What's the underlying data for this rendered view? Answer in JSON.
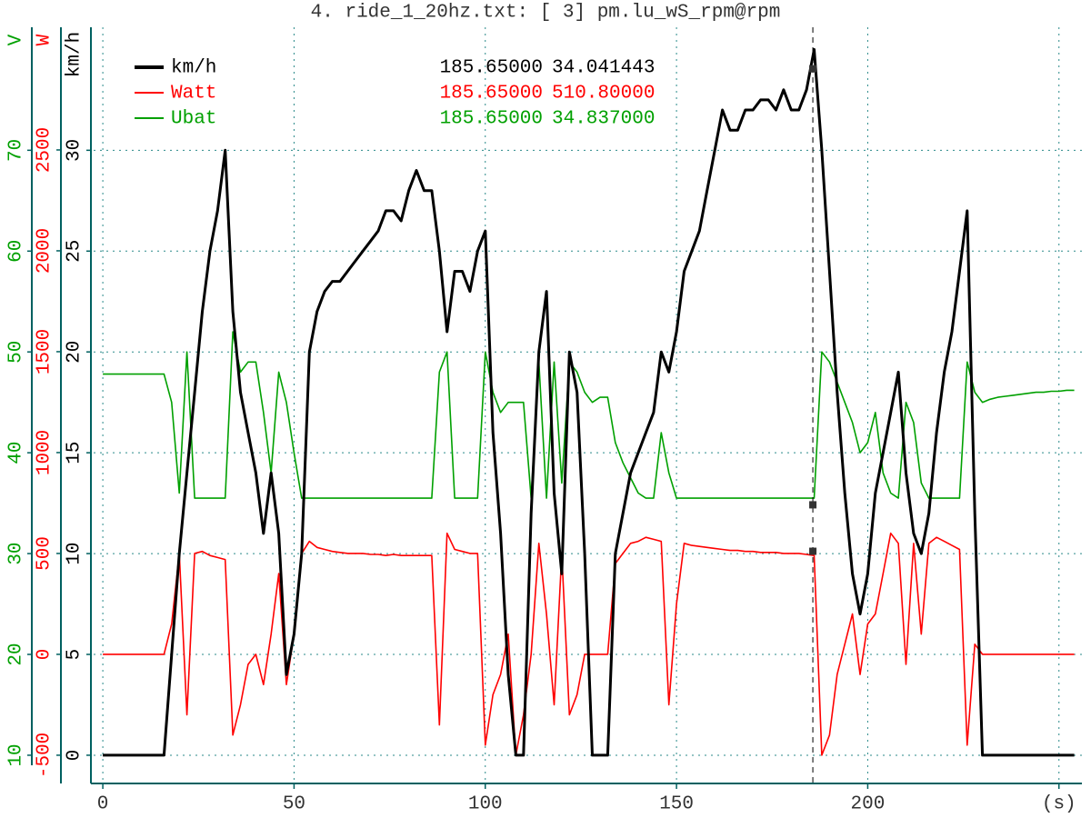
{
  "chart_data": {
    "type": "line",
    "title": "4. ride_1_20hz.txt: [ 3] pm.lu_wS_rpm@rpm",
    "x": [
      0,
      2,
      4,
      6,
      8,
      10,
      12,
      14,
      16,
      18,
      20,
      22,
      24,
      26,
      28,
      30,
      32,
      34,
      36,
      38,
      40,
      42,
      44,
      46,
      48,
      50,
      52,
      54,
      56,
      58,
      60,
      62,
      64,
      66,
      68,
      70,
      72,
      74,
      76,
      78,
      80,
      82,
      84,
      86,
      88,
      90,
      92,
      94,
      96,
      98,
      100,
      102,
      104,
      106,
      108,
      110,
      112,
      114,
      116,
      118,
      120,
      122,
      124,
      126,
      128,
      130,
      132,
      134,
      136,
      138,
      140,
      142,
      144,
      146,
      148,
      150,
      152,
      154,
      156,
      158,
      160,
      162,
      164,
      166,
      168,
      170,
      172,
      174,
      176,
      178,
      180,
      182,
      184,
      186,
      188,
      190,
      192,
      194,
      196,
      198,
      200,
      202,
      204,
      206,
      208,
      210,
      212,
      214,
      216,
      218,
      220,
      222,
      224,
      226,
      228,
      230,
      232,
      234,
      236,
      238,
      240,
      242,
      244,
      246,
      248,
      250,
      252,
      254
    ],
    "xlim": [
      -2.4,
      256
    ],
    "xticks": [
      0,
      50,
      100,
      150,
      200,
      {
        "value": 250,
        "label": "(s)"
      }
    ],
    "ylabel": "km/h",
    "ylim": [
      -1.4,
      36.1
    ],
    "yticks": [
      0,
      5,
      10,
      15,
      20,
      25,
      30
    ],
    "y2label": "W",
    "y2lim": [
      -640,
      3108
    ],
    "y2ticks": [
      -500,
      0,
      500,
      1000,
      1500,
      2000,
      2500
    ],
    "y3label": "V",
    "y3lim": [
      7.2,
      82.2
    ],
    "y3ticks": [
      10,
      20,
      30,
      40,
      50,
      60,
      70
    ],
    "grid": true,
    "cursor_x": {
      "value": 185.65,
      "label": "185.65000"
    },
    "series": [
      {
        "name": "km/h",
        "color": "#000000",
        "axis": "y",
        "cursor_value": {
          "value": 34.041443,
          "label": "34.041443"
        },
        "values": [
          0,
          0,
          0,
          0,
          0,
          0,
          0,
          0,
          0,
          5,
          10,
          14,
          18,
          22,
          25,
          27,
          30,
          22,
          18,
          16,
          14,
          11,
          14,
          11,
          4,
          6,
          10,
          20,
          22,
          23,
          23.5,
          23.5,
          24,
          24.5,
          25,
          25.5,
          26,
          27,
          27,
          26.5,
          28,
          29,
          28,
          28,
          25,
          21,
          24,
          24,
          23,
          25,
          26,
          16,
          11,
          4,
          0,
          0,
          12,
          20,
          23,
          13,
          9,
          20,
          18,
          10,
          0,
          0,
          0,
          10,
          12,
          14,
          15,
          16,
          17,
          20,
          19,
          21,
          24,
          25,
          26,
          28,
          30,
          32,
          31,
          31,
          32,
          32,
          32.5,
          32.5,
          32,
          33,
          32,
          32,
          33,
          35,
          30,
          24,
          18,
          13,
          9,
          7,
          9,
          13,
          15,
          17,
          19,
          14,
          11,
          10,
          12,
          16,
          19,
          21,
          24,
          27,
          12,
          0,
          0,
          0,
          0,
          0,
          0,
          0,
          0,
          0,
          0,
          0,
          0,
          0
        ]
      },
      {
        "name": "Watt",
        "color": "#ff0000",
        "axis": "y2",
        "cursor_value": {
          "value": 510.8,
          "label": "510.80000"
        },
        "values": [
          0,
          0,
          0,
          0,
          0,
          0,
          0,
          0,
          0,
          150,
          500,
          -300,
          500,
          510,
          490,
          480,
          470,
          -400,
          -250,
          -50,
          0,
          -150,
          100,
          400,
          -150,
          100,
          500,
          560,
          530,
          520,
          510,
          505,
          500,
          500,
          500,
          495,
          495,
          490,
          495,
          490,
          490,
          490,
          490,
          490,
          -350,
          600,
          520,
          510,
          500,
          500,
          -450,
          -200,
          -100,
          100,
          -500,
          -300,
          0,
          550,
          200,
          -250,
          500,
          -300,
          -200,
          0,
          0,
          0,
          0,
          450,
          500,
          550,
          560,
          580,
          570,
          560,
          -250,
          250,
          550,
          540,
          535,
          530,
          525,
          520,
          515,
          515,
          510,
          510,
          505,
          505,
          505,
          500,
          500,
          500,
          495,
          490,
          -500,
          -400,
          -100,
          50,
          200,
          -100,
          150,
          200,
          400,
          600,
          550,
          -50,
          550,
          100,
          550,
          580,
          560,
          540,
          520,
          -450,
          50,
          0,
          0,
          0,
          0,
          0,
          0,
          0,
          0,
          0,
          0,
          0,
          0,
          0
        ]
      },
      {
        "name": "Ubat",
        "color": "#00a000",
        "axis": "y3",
        "cursor_value": {
          "value": 34.837,
          "label": "34.837000"
        },
        "values": [
          47.8,
          47.8,
          47.8,
          47.8,
          47.8,
          47.8,
          47.8,
          47.8,
          47.8,
          45,
          36,
          50,
          35.5,
          35.5,
          35.5,
          35.5,
          35.5,
          52,
          48,
          49,
          49,
          44,
          38,
          48,
          45,
          40,
          35.5,
          35.5,
          35.5,
          35.5,
          35.5,
          35.5,
          35.5,
          35.5,
          35.5,
          35.5,
          35.5,
          35.5,
          35.5,
          35.5,
          35.5,
          35.5,
          35.5,
          35.5,
          48,
          50,
          35.5,
          35.5,
          35.5,
          35.5,
          50,
          46,
          44,
          45,
          45,
          45,
          35.5,
          49,
          35.5,
          49,
          37,
          49,
          48,
          46,
          45,
          45.5,
          45.5,
          41,
          39,
          37.5,
          36,
          35.5,
          35.5,
          42,
          38,
          35.5,
          35.5,
          35.5,
          35.5,
          35.5,
          35.5,
          35.5,
          35.5,
          35.5,
          35.5,
          35.5,
          35.5,
          35.5,
          35.5,
          35.5,
          35.5,
          35.5,
          35.5,
          35.5,
          50,
          49,
          47,
          45,
          43,
          40,
          41,
          44,
          38,
          36,
          35.5,
          45,
          43,
          37,
          35.5,
          35.5,
          35.5,
          35.5,
          35.5,
          49,
          46,
          45,
          45.3,
          45.5,
          45.6,
          45.7,
          45.8,
          45.9,
          46,
          46,
          46.1,
          46.1,
          46.2,
          46.2
        ]
      }
    ]
  }
}
